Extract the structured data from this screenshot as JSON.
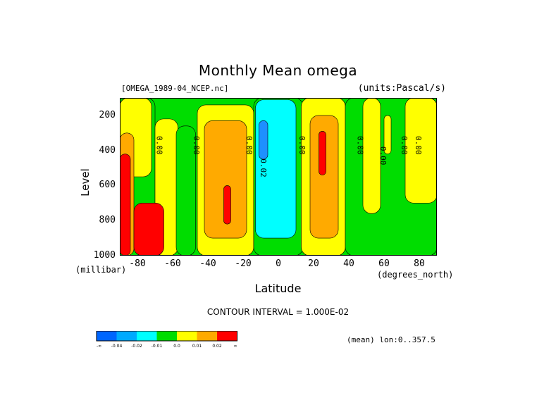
{
  "chart_data": {
    "type": "heatmap",
    "title": "Monthly Mean omega",
    "file_label": "[OMEGA_1989-04_NCEP.nc]",
    "units_label": "(units:Pascal/s)",
    "xlabel": "Latitude",
    "x_units": "(degrees_north)",
    "ylabel": "Level",
    "y_units": "(millibar)",
    "xlim": [
      -90,
      90
    ],
    "ylim": [
      1000,
      100
    ],
    "x_ticks": [
      "-80",
      "-60",
      "-40",
      "-20",
      "0",
      "20",
      "40",
      "60",
      "80"
    ],
    "x_tick_values": [
      -80,
      -60,
      -40,
      -20,
      0,
      20,
      40,
      60,
      80
    ],
    "y_ticks": [
      "200",
      "400",
      "600",
      "800",
      "1000"
    ],
    "y_tick_values": [
      200,
      400,
      600,
      800,
      1000
    ],
    "contour_interval_text": "CONTOUR INTERVAL = 1.000E-02",
    "mean_text": "(mean) lon:0..357.5",
    "contour_labels": [
      {
        "text": "0.00",
        "lat": -69,
        "lev": 370
      },
      {
        "text": "0.00",
        "lat": -48,
        "lev": 370
      },
      {
        "text": "0.00",
        "lat": -18,
        "lev": 370
      },
      {
        "text": "0.02",
        "lat": -10,
        "lev": 500
      },
      {
        "text": "0.00",
        "lat": 12,
        "lev": 370
      },
      {
        "text": "0.00",
        "lat": 45,
        "lev": 370
      },
      {
        "text": "0.00",
        "lat": 58,
        "lev": 430
      },
      {
        "text": "0.00",
        "lat": 70,
        "lev": 370
      },
      {
        "text": "0.00",
        "lat": 78,
        "lev": 370
      }
    ],
    "regions": [
      {
        "level": "green",
        "lat": [
          -90,
          -70
        ],
        "lev": [
          100,
          1000
        ]
      },
      {
        "level": "yellow",
        "lat": [
          -90,
          -72
        ],
        "lev": [
          100,
          550
        ]
      },
      {
        "level": "yellow",
        "lat": [
          -70,
          -57
        ],
        "lev": [
          220,
          1000
        ]
      },
      {
        "level": "orange",
        "lat": [
          -90,
          -82
        ],
        "lev": [
          300,
          1000
        ]
      },
      {
        "level": "red",
        "lat": [
          -90,
          -84
        ],
        "lev": [
          420,
          1000
        ]
      },
      {
        "level": "red",
        "lat": [
          -82,
          -65
        ],
        "lev": [
          700,
          1000
        ]
      },
      {
        "level": "cyan",
        "lat": [
          -56,
          -48
        ],
        "lev": [
          300,
          980
        ]
      },
      {
        "level": "green",
        "lat": [
          -58,
          -47
        ],
        "lev": [
          260,
          1000
        ]
      },
      {
        "level": "yellow",
        "lat": [
          -46,
          -14
        ],
        "lev": [
          140,
          1000
        ]
      },
      {
        "level": "orange",
        "lat": [
          -42,
          -18
        ],
        "lev": [
          230,
          900
        ]
      },
      {
        "level": "red",
        "lat": [
          -31,
          -27
        ],
        "lev": [
          600,
          820
        ]
      },
      {
        "level": "green",
        "lat": [
          -14,
          14
        ],
        "lev": [
          100,
          1000
        ]
      },
      {
        "level": "cyan",
        "lat": [
          -13,
          10
        ],
        "lev": [
          110,
          900
        ]
      },
      {
        "level": "blue",
        "lat": [
          -11,
          -6
        ],
        "lev": [
          230,
          450
        ]
      },
      {
        "level": "yellow",
        "lat": [
          13,
          38
        ],
        "lev": [
          100,
          1000
        ]
      },
      {
        "level": "orange",
        "lat": [
          18,
          34
        ],
        "lev": [
          200,
          900
        ]
      },
      {
        "level": "red",
        "lat": [
          23,
          27
        ],
        "lev": [
          290,
          540
        ]
      },
      {
        "level": "green",
        "lat": [
          38,
          90
        ],
        "lev": [
          100,
          1000
        ]
      },
      {
        "level": "yellow",
        "lat": [
          48,
          58
        ],
        "lev": [
          100,
          760
        ]
      },
      {
        "level": "yellow",
        "lat": [
          60,
          64
        ],
        "lev": [
          200,
          420
        ]
      },
      {
        "level": "yellow",
        "lat": [
          72,
          90
        ],
        "lev": [
          100,
          700
        ]
      }
    ],
    "colorbar": {
      "colors": [
        "#0066ff",
        "#00aaff",
        "#00ffff",
        "#00dd00",
        "#ffff00",
        "#ffaa00",
        "#ff0000"
      ],
      "labels": [
        "-∞",
        "-0.04",
        "-0.02",
        "-0.01",
        "0.0",
        "0.01",
        "0.02",
        "∞"
      ]
    },
    "level_colors": {
      "blue": "#1e90ff",
      "cyan": "#00ffff",
      "green": "#00dd00",
      "yellow": "#ffff00",
      "orange": "#ffaa00",
      "red": "#ff0000"
    }
  }
}
